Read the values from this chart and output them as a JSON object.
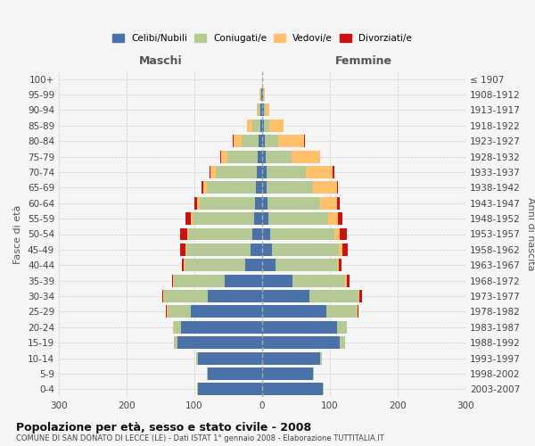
{
  "age_groups": [
    "0-4",
    "5-9",
    "10-14",
    "15-19",
    "20-24",
    "25-29",
    "30-34",
    "35-39",
    "40-44",
    "45-49",
    "50-54",
    "55-59",
    "60-64",
    "65-69",
    "70-74",
    "75-79",
    "80-84",
    "85-89",
    "90-94",
    "95-99",
    "100+"
  ],
  "birth_years": [
    "2003-2007",
    "1998-2002",
    "1993-1997",
    "1988-1992",
    "1983-1987",
    "1978-1982",
    "1973-1977",
    "1968-1972",
    "1963-1967",
    "1958-1962",
    "1953-1957",
    "1948-1952",
    "1943-1947",
    "1938-1942",
    "1933-1937",
    "1928-1932",
    "1923-1927",
    "1918-1922",
    "1913-1917",
    "1908-1912",
    "≤ 1907"
  ],
  "maschi": {
    "celibi": [
      95,
      80,
      95,
      125,
      120,
      105,
      80,
      55,
      25,
      17,
      14,
      12,
      10,
      9,
      8,
      6,
      5,
      3,
      2,
      1,
      0
    ],
    "coniugati": [
      1,
      1,
      2,
      5,
      10,
      35,
      65,
      75,
      90,
      95,
      95,
      90,
      82,
      72,
      60,
      45,
      25,
      12,
      4,
      2,
      0
    ],
    "vedovi": [
      0,
      0,
      0,
      0,
      1,
      1,
      1,
      1,
      1,
      1,
      2,
      3,
      4,
      6,
      8,
      10,
      12,
      8,
      2,
      1,
      0
    ],
    "divorziati": [
      0,
      0,
      0,
      0,
      0,
      1,
      2,
      2,
      2,
      8,
      10,
      8,
      4,
      2,
      1,
      1,
      1,
      0,
      0,
      0,
      0
    ]
  },
  "femmine": {
    "nubili": [
      90,
      75,
      85,
      115,
      110,
      95,
      70,
      45,
      20,
      15,
      12,
      9,
      8,
      7,
      6,
      5,
      4,
      3,
      2,
      1,
      0
    ],
    "coniugate": [
      1,
      1,
      3,
      8,
      15,
      45,
      72,
      78,
      90,
      98,
      95,
      88,
      78,
      68,
      58,
      38,
      20,
      8,
      3,
      1,
      0
    ],
    "vedove": [
      0,
      0,
      0,
      0,
      0,
      1,
      1,
      2,
      3,
      5,
      8,
      15,
      25,
      35,
      40,
      42,
      38,
      20,
      5,
      2,
      0
    ],
    "divorziate": [
      0,
      0,
      0,
      0,
      0,
      1,
      5,
      4,
      4,
      8,
      10,
      7,
      3,
      2,
      2,
      1,
      1,
      0,
      1,
      0,
      0
    ]
  },
  "colors": {
    "celibi": "#4a72a8",
    "coniugati": "#b5c994",
    "vedovi": "#ffbf6b",
    "divorziati": "#cc1111"
  },
  "title": "Popolazione per età, sesso e stato civile - 2008",
  "subtitle": "COMUNE DI SAN DONATO DI LECCE (LE) - Dati ISTAT 1° gennaio 2008 - Elaborazione TUTTITALIA.IT",
  "ylabel_left": "Fasce di età",
  "ylabel_right": "Anni di nascita",
  "xlabel_left": "Maschi",
  "xlabel_right": "Femmine",
  "xlim": 300,
  "bg_color": "#f5f5f5",
  "grid_color": "#cccccc"
}
